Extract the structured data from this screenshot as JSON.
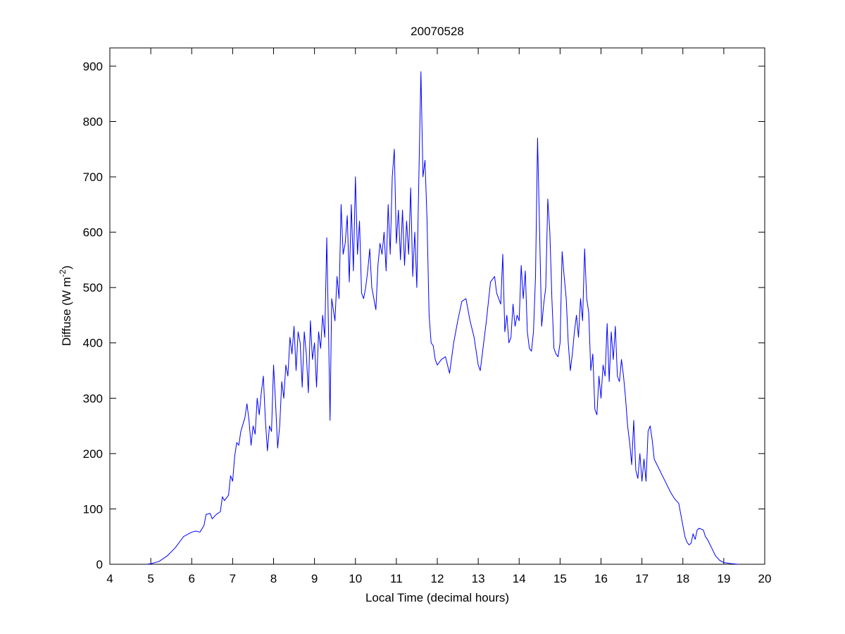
{
  "chart_data": {
    "type": "line",
    "title": "20070528",
    "xlabel": "Local Time (decimal hours)",
    "ylabel_parts": [
      "Diffuse (W m",
      "-2",
      ")"
    ],
    "xlim": [
      4,
      20
    ],
    "ylim": [
      0,
      933
    ],
    "xticks": [
      4,
      5,
      6,
      7,
      8,
      9,
      10,
      11,
      12,
      13,
      14,
      15,
      16,
      17,
      18,
      19,
      20
    ],
    "yticks": [
      0,
      100,
      200,
      300,
      400,
      500,
      600,
      700,
      800,
      900
    ],
    "grid": false,
    "series": [
      {
        "color": "#0000ff",
        "x": [
          4.9,
          5.0,
          5.2,
          5.4,
          5.6,
          5.8,
          6.0,
          6.1,
          6.2,
          6.3,
          6.35,
          6.45,
          6.5,
          6.6,
          6.7,
          6.75,
          6.8,
          6.9,
          6.95,
          7.0,
          7.05,
          7.1,
          7.15,
          7.2,
          7.3,
          7.35,
          7.4,
          7.45,
          7.5,
          7.55,
          7.6,
          7.65,
          7.7,
          7.75,
          7.8,
          7.85,
          7.9,
          7.95,
          8.0,
          8.05,
          8.1,
          8.15,
          8.2,
          8.25,
          8.3,
          8.35,
          8.4,
          8.45,
          8.5,
          8.55,
          8.6,
          8.65,
          8.7,
          8.75,
          8.8,
          8.85,
          8.9,
          8.95,
          9.0,
          9.05,
          9.1,
          9.15,
          9.2,
          9.25,
          9.3,
          9.35,
          9.38,
          9.42,
          9.5,
          9.55,
          9.6,
          9.65,
          9.7,
          9.75,
          9.8,
          9.85,
          9.9,
          9.95,
          10.0,
          10.05,
          10.1,
          10.15,
          10.2,
          10.25,
          10.3,
          10.35,
          10.4,
          10.45,
          10.5,
          10.55,
          10.6,
          10.65,
          10.7,
          10.75,
          10.8,
          10.85,
          10.9,
          10.95,
          11.0,
          11.05,
          11.1,
          11.15,
          11.2,
          11.25,
          11.3,
          11.35,
          11.4,
          11.45,
          11.5,
          11.55,
          11.6,
          11.65,
          11.7,
          11.75,
          11.8,
          11.85,
          11.9,
          11.95,
          12.0,
          12.1,
          12.2,
          12.3,
          12.4,
          12.5,
          12.6,
          12.7,
          12.8,
          12.9,
          13.0,
          13.05,
          13.1,
          13.2,
          13.3,
          13.4,
          13.45,
          13.5,
          13.55,
          13.6,
          13.65,
          13.7,
          13.75,
          13.8,
          13.85,
          13.9,
          13.95,
          14.0,
          14.05,
          14.1,
          14.15,
          14.2,
          14.25,
          14.3,
          14.35,
          14.4,
          14.45,
          14.5,
          14.55,
          14.6,
          14.65,
          14.7,
          14.75,
          14.8,
          14.85,
          14.9,
          14.95,
          15.0,
          15.05,
          15.1,
          15.15,
          15.2,
          15.25,
          15.3,
          15.35,
          15.4,
          15.45,
          15.5,
          15.55,
          15.6,
          15.65,
          15.7,
          15.75,
          15.8,
          15.85,
          15.9,
          15.95,
          16.0,
          16.05,
          16.1,
          16.15,
          16.2,
          16.25,
          16.3,
          16.35,
          16.4,
          16.45,
          16.5,
          16.55,
          16.6,
          16.65,
          16.7,
          16.75,
          16.8,
          16.85,
          16.9,
          16.95,
          17.0,
          17.05,
          17.1,
          17.15,
          17.2,
          17.25,
          17.3,
          17.4,
          17.5,
          17.6,
          17.7,
          17.8,
          17.9,
          17.95,
          18.0,
          18.05,
          18.1,
          18.15,
          18.2,
          18.25,
          18.3,
          18.35,
          18.4,
          18.5,
          18.55,
          18.6,
          18.7,
          18.8,
          18.9,
          19.0,
          19.2,
          19.35
        ],
        "values": [
          0,
          1,
          5,
          15,
          30,
          50,
          58,
          60,
          58,
          70,
          90,
          92,
          82,
          90,
          95,
          122,
          115,
          125,
          160,
          150,
          195,
          220,
          215,
          240,
          265,
          290,
          260,
          215,
          250,
          235,
          300,
          270,
          310,
          340,
          260,
          205,
          250,
          240,
          360,
          290,
          210,
          250,
          330,
          300,
          360,
          340,
          410,
          380,
          430,
          350,
          420,
          400,
          320,
          420,
          380,
          310,
          440,
          370,
          400,
          320,
          420,
          390,
          450,
          410,
          590,
          390,
          260,
          480,
          440,
          520,
          480,
          650,
          560,
          580,
          630,
          510,
          650,
          530,
          700,
          560,
          620,
          490,
          480,
          500,
          530,
          570,
          500,
          480,
          460,
          540,
          580,
          560,
          600,
          530,
          650,
          560,
          700,
          750,
          580,
          640,
          550,
          640,
          540,
          620,
          560,
          680,
          520,
          600,
          500,
          700,
          890,
          700,
          730,
          620,
          450,
          400,
          395,
          370,
          360,
          370,
          375,
          345,
          400,
          440,
          475,
          480,
          440,
          410,
          360,
          350,
          380,
          440,
          510,
          520,
          490,
          480,
          470,
          560,
          420,
          450,
          400,
          410,
          470,
          430,
          450,
          440,
          540,
          480,
          530,
          420,
          390,
          385,
          420,
          520,
          770,
          600,
          430,
          470,
          500,
          660,
          600,
          480,
          390,
          380,
          375,
          400,
          565,
          520,
          480,
          400,
          350,
          380,
          420,
          450,
          410,
          480,
          440,
          570,
          480,
          455,
          350,
          380,
          280,
          270,
          340,
          300,
          360,
          340,
          435,
          330,
          420,
          370,
          430,
          340,
          330,
          370,
          340,
          300,
          250,
          220,
          180,
          260,
          170,
          155,
          200,
          150,
          190,
          150,
          240,
          250,
          225,
          190,
          175,
          160,
          145,
          130,
          118,
          110,
          90,
          70,
          50,
          40,
          35,
          38,
          55,
          45,
          62,
          65,
          62,
          50,
          45,
          30,
          15,
          7,
          3,
          1,
          0
        ]
      }
    ]
  }
}
